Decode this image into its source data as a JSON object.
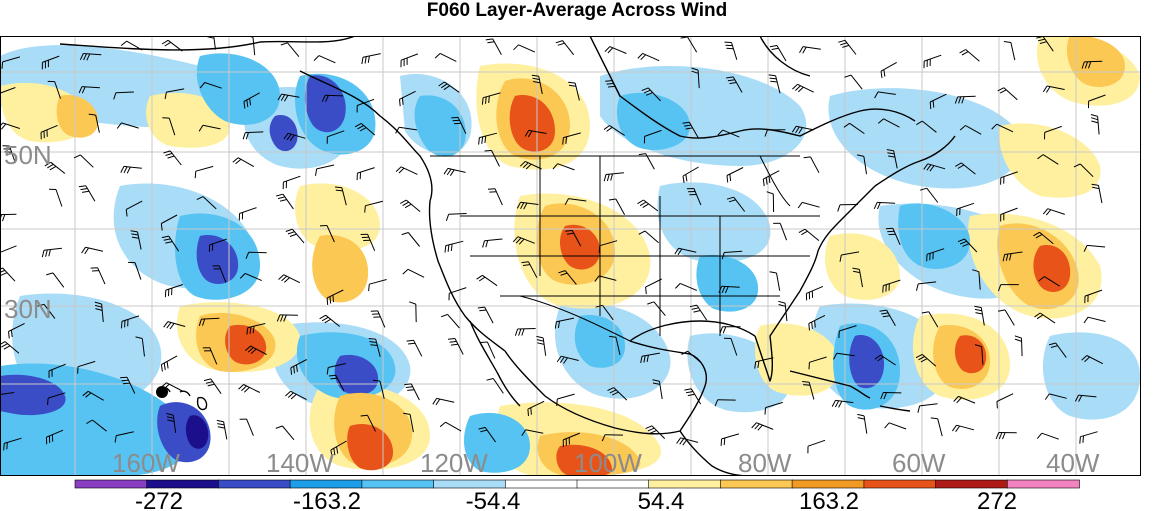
{
  "title": "F060 Layer-Average Across Wind",
  "map": {
    "lat_labels": [
      "50N",
      "30N"
    ],
    "lon_labels": [
      "160W",
      "140W",
      "120W",
      "100W",
      "80W",
      "60W",
      "40W"
    ],
    "label_color": "#8c8c8c",
    "gridline_color": "#c8c8c8",
    "coastline_color": "#000000"
  },
  "colorbar": {
    "tick_labels": [
      "-272",
      "-163.2",
      "-54.4",
      "54.4",
      "163.2",
      "272"
    ],
    "colors": [
      "#8a3fc2",
      "#1c0f8c",
      "#3b4cc7",
      "#1e9ee8",
      "#56c3f2",
      "#a8dcf7",
      "#ffffff",
      "#ffffff",
      "#fff0a0",
      "#fbc853",
      "#f19b24",
      "#e8531a",
      "#ae1a16",
      "#f283c0"
    ]
  }
}
